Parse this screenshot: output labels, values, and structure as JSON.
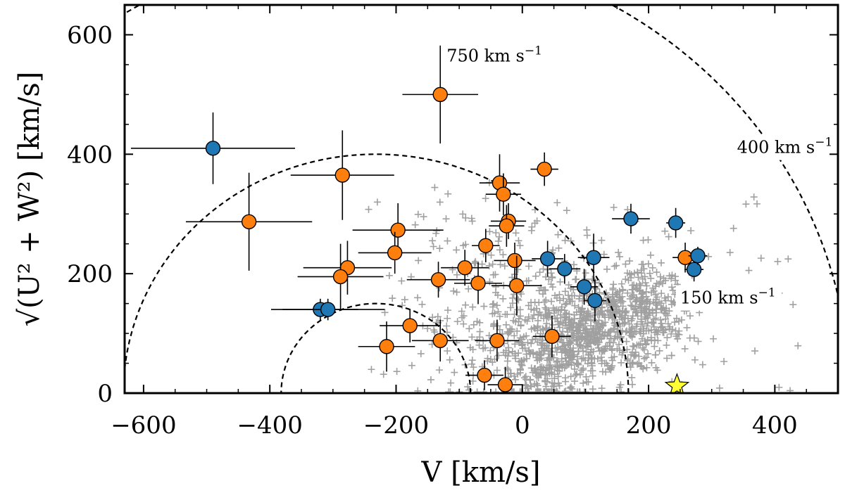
{
  "chart_data": {
    "type": "scatter",
    "xlabel": "V [km/s]",
    "ylabel": "√(U² + W²) [km/s]",
    "xlim": [
      -630,
      500
    ],
    "ylim": [
      0,
      650
    ],
    "xticks": [
      -600,
      -400,
      -200,
      0,
      200,
      400
    ],
    "yticks": [
      0,
      200,
      400,
      600
    ],
    "x_tick_labels": [
      "−600",
      "−400",
      "−200",
      "0",
      "200",
      "400"
    ],
    "y_tick_labels": [
      "0",
      "200",
      "400",
      "600"
    ],
    "grid": false,
    "colors": {
      "orange": "#ff7f0e",
      "blue": "#1f77b4",
      "background_points": "#a0a0a0",
      "sun": "#ffff33"
    },
    "curves": [
      {
        "label_main": "750",
        "label_unit": " km s",
        "label_exp": "−1",
        "v_total": 750,
        "label_v": -120,
        "label_y": 555
      },
      {
        "label_main": "400",
        "label_unit": " km s",
        "label_exp": "−1",
        "v_total": 400,
        "label_v": 340,
        "label_y": 402
      },
      {
        "label_main": "150",
        "label_unit": " km s",
        "label_exp": "−1",
        "v_total": 150,
        "label_v": 250,
        "label_y": 150
      }
    ],
    "v_lsr": -232,
    "sun": {
      "v": 245,
      "y": 12
    },
    "series": [
      {
        "color": "orange",
        "points": [
          {
            "v": -130,
            "y": 500,
            "xerr": 60,
            "yerr": 82
          },
          {
            "v": -285,
            "y": 365,
            "xerr": 82,
            "yerr": 75
          },
          {
            "v": -433,
            "y": 287,
            "xerr": 100,
            "yerr": 82
          },
          {
            "v": -197,
            "y": 273,
            "xerr": 72,
            "yerr": 45
          },
          {
            "v": -202,
            "y": 235,
            "xerr": 58,
            "yerr": 35
          },
          {
            "v": -277,
            "y": 210,
            "xerr": 70,
            "yerr": 45
          },
          {
            "v": -288,
            "y": 195,
            "xerr": 68,
            "yerr": 55
          },
          {
            "v": -133,
            "y": 190,
            "xerr": 50,
            "yerr": 30
          },
          {
            "v": -91,
            "y": 210,
            "xerr": 38,
            "yerr": 30
          },
          {
            "v": -70,
            "y": 184,
            "xerr": 38,
            "yerr": 35
          },
          {
            "v": -58,
            "y": 247,
            "xerr": 22,
            "yerr": 28
          },
          {
            "v": -36,
            "y": 352,
            "xerr": 32,
            "yerr": 48
          },
          {
            "v": -30,
            "y": 333,
            "xerr": 28,
            "yerr": 35
          },
          {
            "v": -22,
            "y": 288,
            "xerr": 28,
            "yerr": 30
          },
          {
            "v": -25,
            "y": 280,
            "xerr": 28,
            "yerr": 35
          },
          {
            "v": -12,
            "y": 222,
            "xerr": 33,
            "yerr": 30
          },
          {
            "v": -9,
            "y": 180,
            "xerr": 40,
            "yerr": 50
          },
          {
            "v": 35,
            "y": 375,
            "xerr": 22,
            "yerr": 28
          },
          {
            "v": -178,
            "y": 113,
            "xerr": 48,
            "yerr": 28
          },
          {
            "v": -215,
            "y": 78,
            "xerr": 45,
            "yerr": 42
          },
          {
            "v": -130,
            "y": 88,
            "xerr": 45,
            "yerr": 35
          },
          {
            "v": -40,
            "y": 88,
            "xerr": 35,
            "yerr": 35
          },
          {
            "v": 47,
            "y": 95,
            "xerr": 30,
            "yerr": 35
          },
          {
            "v": -60,
            "y": 30,
            "xerr": 30,
            "yerr": 25
          },
          {
            "v": -27,
            "y": 14,
            "xerr": 28,
            "yerr": 30
          },
          {
            "v": 258,
            "y": 227,
            "xerr": 20,
            "yerr": 25
          }
        ]
      },
      {
        "color": "blue",
        "points": [
          {
            "v": -490,
            "y": 410,
            "xerr": 130,
            "yerr": 60
          },
          {
            "v": -320,
            "y": 140,
            "xerr": 60,
            "yerr": 18
          },
          {
            "v": -308,
            "y": 140,
            "xerr": 90,
            "yerr": 18
          },
          {
            "v": 40,
            "y": 225,
            "xerr": 25,
            "yerr": 30
          },
          {
            "v": 67,
            "y": 208,
            "xerr": 25,
            "yerr": 25
          },
          {
            "v": 98,
            "y": 178,
            "xerr": 22,
            "yerr": 30
          },
          {
            "v": 113,
            "y": 227,
            "xerr": 25,
            "yerr": 40
          },
          {
            "v": 115,
            "y": 155,
            "xerr": 18,
            "yerr": 35
          },
          {
            "v": 172,
            "y": 292,
            "xerr": 30,
            "yerr": 25
          },
          {
            "v": 243,
            "y": 285,
            "xerr": 15,
            "yerr": 25
          },
          {
            "v": 272,
            "y": 207,
            "xerr": 15,
            "yerr": 20
          },
          {
            "v": 278,
            "y": 230,
            "xerr": 15,
            "yerr": 15
          }
        ]
      }
    ]
  }
}
